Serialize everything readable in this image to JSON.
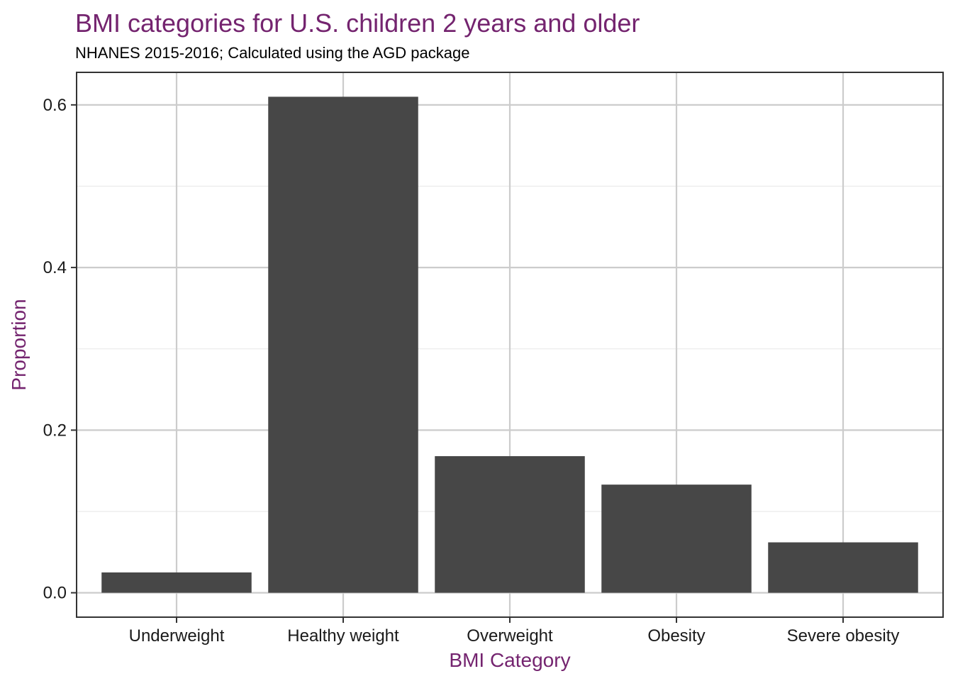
{
  "chart_data": {
    "type": "bar",
    "title": "BMI categories for U.S. children 2 years and older",
    "subtitle": "NHANES 2015-2016; Calculated using the AGD package",
    "xlabel": "BMI Category",
    "ylabel": "Proportion",
    "categories": [
      "Underweight",
      "Healthy weight",
      "Overweight",
      "Obesity",
      "Severe obesity"
    ],
    "values": [
      0.025,
      0.61,
      0.168,
      0.133,
      0.062
    ],
    "ylim": [
      -0.03,
      0.64
    ],
    "yticks": [
      0.0,
      0.2,
      0.4,
      0.6
    ],
    "ytick_labels": [
      "0.0",
      "0.2",
      "0.4",
      "0.6"
    ],
    "grid": true,
    "colors": {
      "bar": "#474747",
      "title": "#74246f",
      "axis_title": "#74246f",
      "grid_major": "#cccccc",
      "grid_minor": "#ebebeb",
      "panel_border": "#333333"
    }
  }
}
